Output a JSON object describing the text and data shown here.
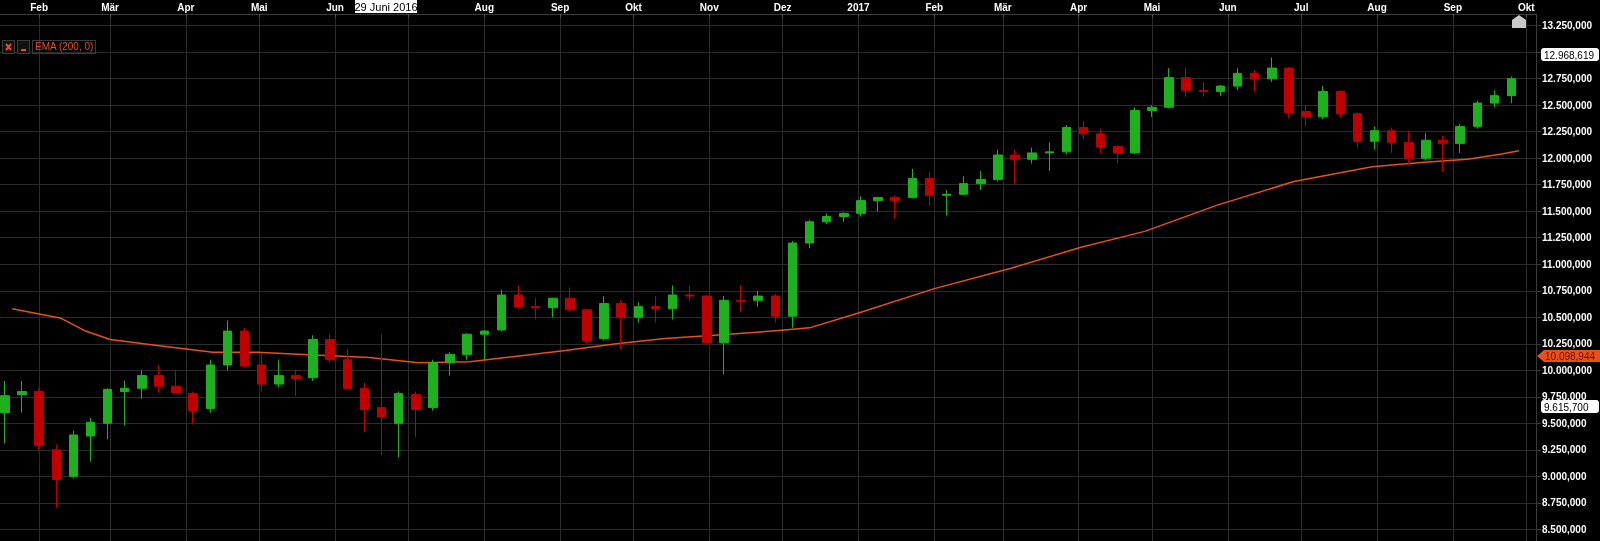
{
  "chart_data": {
    "type": "candlestick",
    "legend": "top left",
    "grid": true,
    "marker": "none",
    "xlim": [
      "2016-01-16",
      "2017-10-05"
    ],
    "xticks": [
      {
        "value": "2016-02-01",
        "label": "Feb"
      },
      {
        "value": "2016-03-01",
        "label": "Mär"
      },
      {
        "value": "2016-04-01",
        "label": "Apr"
      },
      {
        "value": "2016-05-01",
        "label": "Mai"
      },
      {
        "value": "2016-06-01",
        "label": "Jun"
      },
      {
        "value": "2016-07-01",
        "label": null
      },
      {
        "value": "2016-08-01",
        "label": "Aug"
      },
      {
        "value": "2016-09-01",
        "label": "Sep"
      },
      {
        "value": "2016-10-01",
        "label": "Okt"
      },
      {
        "value": "2016-11-01",
        "label": "Nov"
      },
      {
        "value": "2016-12-01",
        "label": "Dez"
      },
      {
        "value": "2017-01-01",
        "label": "2017"
      },
      {
        "value": "2017-02-01",
        "label": "Feb"
      },
      {
        "value": "2017-03-01",
        "label": "Mär"
      },
      {
        "value": "2017-04-01",
        "label": "Apr"
      },
      {
        "value": "2017-05-01",
        "label": "Mai"
      },
      {
        "value": "2017-06-01",
        "label": "Jun"
      },
      {
        "value": "2017-07-01",
        "label": "Jul"
      },
      {
        "value": "2017-08-01",
        "label": "Aug"
      },
      {
        "value": "2017-09-01",
        "label": "Sep"
      },
      {
        "value": "2017-10-01",
        "label": "Okt"
      }
    ],
    "ylim": [
      8390,
      13360
    ],
    "yticks": [
      {
        "value": 8500,
        "label": "8.500,000"
      },
      {
        "value": 8750,
        "label": "8.750,000"
      },
      {
        "value": 9000,
        "label": "9.000,000"
      },
      {
        "value": 9250,
        "label": "9.250,000"
      },
      {
        "value": 9500,
        "label": "9.500,000"
      },
      {
        "value": 9750,
        "label": "9.750,000"
      },
      {
        "value": 10000,
        "label": "10.000,000"
      },
      {
        "value": 10250,
        "label": "10.250,000"
      },
      {
        "value": 10500,
        "label": "10.500,000"
      },
      {
        "value": 10750,
        "label": "10.750,000"
      },
      {
        "value": 11000,
        "label": "11.000,000"
      },
      {
        "value": 11250,
        "label": "11.250,000"
      },
      {
        "value": 11500,
        "label": "11.500,000"
      },
      {
        "value": 11750,
        "label": "11.750,000"
      },
      {
        "value": 12000,
        "label": "12.000,000"
      },
      {
        "value": 12250,
        "label": "12.250,000"
      },
      {
        "value": 12500,
        "label": "12.500,000"
      },
      {
        "value": 12750,
        "label": "12.750,000"
      },
      {
        "value": 13000,
        "label": null
      },
      {
        "value": 13250,
        "label": "13.250,000"
      }
    ],
    "annotations": [
      "29 Juni 2016",
      "12.968,619",
      "10.098,944",
      "9.615,700"
    ],
    "series": [
      {
        "color": "#1fb01f",
        "x": [
          "2016-01-18",
          "2016-01-25",
          "2016-02-15",
          "2016-02-22",
          "2016-02-29",
          "2016-03-07",
          "2016-03-14",
          "2016-04-11",
          "2016-04-18",
          "2016-05-09",
          "2016-05-23",
          "2016-06-27",
          "2016-07-11",
          "2016-07-18",
          "2016-07-25",
          "2016-08-01",
          "2016-08-08",
          "2016-08-29",
          "2016-09-19",
          "2016-10-03",
          "2016-10-17",
          "2016-11-07",
          "2016-11-21",
          "2016-12-05",
          "2016-12-12",
          "2016-12-19",
          "2016-12-26",
          "2017-01-02",
          "2017-01-09",
          "2017-01-23",
          "2017-02-06",
          "2017-02-13",
          "2017-02-20",
          "2017-02-27",
          "2017-03-13",
          "2017-03-20",
          "2017-03-27",
          "2017-04-24",
          "2017-05-01",
          "2017-05-08",
          "2017-05-29",
          "2017-06-05",
          "2017-06-19",
          "2017-07-10",
          "2017-07-31",
          "2017-08-21",
          "2017-09-04",
          "2017-09-11",
          "2017-09-18",
          "2017-09-25"
        ],
        "ohlc": [
          [
            9600,
            9900,
            9310,
            9760
          ],
          [
            9770,
            9900,
            9600,
            9800
          ],
          [
            9000,
            9430,
            8980,
            9390
          ],
          [
            9380,
            9550,
            9140,
            9510
          ],
          [
            9500,
            9830,
            9350,
            9820
          ],
          [
            9800,
            9900,
            9480,
            9830
          ],
          [
            9830,
            10000,
            9730,
            9950
          ],
          [
            9640,
            10100,
            9600,
            10050
          ],
          [
            10050,
            10470,
            10000,
            10370
          ],
          [
            9870,
            10100,
            9840,
            9950
          ],
          [
            9930,
            10330,
            9900,
            10290
          ],
          [
            9500,
            9800,
            9180,
            9780
          ],
          [
            9650,
            10100,
            9620,
            10070
          ],
          [
            10070,
            10170,
            9950,
            10150
          ],
          [
            10150,
            10350,
            10100,
            10340
          ],
          [
            10340,
            10380,
            10100,
            10370
          ],
          [
            10380,
            10760,
            10370,
            10710
          ],
          [
            10590,
            10680,
            10500,
            10680
          ],
          [
            10300,
            10700,
            10280,
            10630
          ],
          [
            10500,
            10640,
            10450,
            10600
          ],
          [
            10580,
            10800,
            10480,
            10710
          ],
          [
            10260,
            10700,
            9960,
            10660
          ],
          [
            10660,
            10750,
            10600,
            10700
          ],
          [
            10510,
            11220,
            10400,
            11200
          ],
          [
            11200,
            11420,
            11150,
            11400
          ],
          [
            11400,
            11480,
            11380,
            11450
          ],
          [
            11450,
            11490,
            11400,
            11480
          ],
          [
            11480,
            11640,
            11450,
            11600
          ],
          [
            11600,
            11630,
            11500,
            11630
          ],
          [
            11630,
            11900,
            11620,
            11810
          ],
          [
            11650,
            11700,
            11460,
            11660
          ],
          [
            11660,
            11830,
            11650,
            11760
          ],
          [
            11760,
            11880,
            11700,
            11800
          ],
          [
            11800,
            12080,
            11780,
            12030
          ],
          [
            11990,
            12100,
            11950,
            12050
          ],
          [
            12050,
            12150,
            11880,
            12060
          ],
          [
            12060,
            12310,
            12040,
            12290
          ],
          [
            12050,
            12480,
            12040,
            12450
          ],
          [
            12450,
            12500,
            12390,
            12480
          ],
          [
            12480,
            12850,
            12470,
            12760
          ],
          [
            12630,
            12690,
            12590,
            12680
          ],
          [
            12680,
            12850,
            12640,
            12800
          ],
          [
            12750,
            12950,
            12720,
            12850
          ],
          [
            12390,
            12680,
            12370,
            12630
          ],
          [
            12160,
            12300,
            12080,
            12260
          ],
          [
            12000,
            12240,
            11980,
            12170
          ],
          [
            12140,
            12320,
            12050,
            12300
          ],
          [
            12300,
            12540,
            12280,
            12520
          ],
          [
            12520,
            12640,
            12480,
            12590
          ],
          [
            12590,
            12770,
            12520,
            12750
          ]
        ]
      },
      {
        "color": "#c00000",
        "x": [
          "2016-02-01",
          "2016-02-08",
          "2016-03-21",
          "2016-03-28",
          "2016-04-04",
          "2016-04-25",
          "2016-05-02",
          "2016-05-16",
          "2016-05-30",
          "2016-06-06",
          "2016-06-13",
          "2016-06-20",
          "2016-07-04",
          "2016-08-15",
          "2016-08-22",
          "2016-09-05",
          "2016-09-12",
          "2016-09-26",
          "2016-10-10",
          "2016-10-24",
          "2016-10-31",
          "2016-11-14",
          "2016-11-28",
          "2017-01-16",
          "2017-01-30",
          "2017-03-06",
          "2017-04-03",
          "2017-04-10",
          "2017-04-17",
          "2017-05-15",
          "2017-05-22",
          "2017-06-12",
          "2017-06-26",
          "2017-07-03",
          "2017-07-17",
          "2017-07-24",
          "2017-08-07",
          "2017-08-14",
          "2017-08-28"
        ],
        "ohlc": [
          [
            9800,
            9830,
            9250,
            9290
          ],
          [
            9250,
            9300,
            8700,
            8970
          ],
          [
            9950,
            10050,
            9790,
            9850
          ],
          [
            9850,
            10000,
            9790,
            9790
          ],
          [
            9780,
            9800,
            9500,
            9620
          ],
          [
            10370,
            10400,
            10030,
            10040
          ],
          [
            10050,
            10160,
            9800,
            9870
          ],
          [
            9950,
            10000,
            9760,
            9920
          ],
          [
            10290,
            10340,
            10070,
            10100
          ],
          [
            10100,
            10200,
            9820,
            9830
          ],
          [
            9830,
            9880,
            9420,
            9630
          ],
          [
            9650,
            10340,
            9200,
            9560
          ],
          [
            9770,
            9800,
            9370,
            9630
          ],
          [
            10710,
            10800,
            10580,
            10600
          ],
          [
            10600,
            10680,
            10480,
            10590
          ],
          [
            10680,
            10780,
            10550,
            10570
          ],
          [
            10570,
            10580,
            10250,
            10280
          ],
          [
            10630,
            10660,
            10200,
            10500
          ],
          [
            10600,
            10700,
            10450,
            10580
          ],
          [
            10710,
            10800,
            10650,
            10700
          ],
          [
            10700,
            10710,
            10250,
            10260
          ],
          [
            10660,
            10800,
            10550,
            10650
          ],
          [
            10700,
            10720,
            10450,
            10510
          ],
          [
            11630,
            11650,
            11430,
            11600
          ],
          [
            11810,
            11870,
            11550,
            11650
          ],
          [
            12030,
            12080,
            11760,
            11990
          ],
          [
            12290,
            12350,
            12180,
            12230
          ],
          [
            12230,
            12280,
            12050,
            12110
          ],
          [
            12110,
            12120,
            11950,
            12050
          ],
          [
            12760,
            12850,
            12580,
            12640
          ],
          [
            12640,
            12720,
            12580,
            12630
          ],
          [
            12800,
            12830,
            12630,
            12750
          ],
          [
            12850,
            12860,
            12380,
            12430
          ],
          [
            12440,
            12500,
            12300,
            12390
          ],
          [
            12630,
            12640,
            12380,
            12420
          ],
          [
            12420,
            12430,
            12100,
            12160
          ],
          [
            12260,
            12290,
            12050,
            12150
          ],
          [
            12150,
            12260,
            11930,
            12000
          ],
          [
            12170,
            12210,
            11870,
            12140
          ]
        ]
      },
      {
        "type": "line",
        "name": "EMA (200, 0)",
        "color": "#e8501a",
        "x": [
          "2016-01-21",
          "2016-02-10",
          "2016-02-20",
          "2016-03-01",
          "2016-03-22",
          "2016-04-12",
          "2016-04-30",
          "2016-05-19",
          "2016-06-15",
          "2016-07-05",
          "2016-07-26",
          "2016-08-17",
          "2016-09-04",
          "2016-09-24",
          "2016-10-14",
          "2016-11-03",
          "2016-11-27",
          "2016-12-12",
          "2017-01-01",
          "2017-02-01",
          "2017-03-04",
          "2017-04-02",
          "2017-04-28",
          "2017-05-28",
          "2017-06-28",
          "2017-07-30",
          "2017-08-19",
          "2017-09-07",
          "2017-09-21",
          "2017-09-28"
        ],
        "values": [
          10580,
          10490,
          10370,
          10290,
          10230,
          10170,
          10170,
          10150,
          10120,
          10070,
          10080,
          10140,
          10190,
          10250,
          10300,
          10330,
          10370,
          10400,
          10540,
          10770,
          10960,
          11160,
          11310,
          11560,
          11780,
          11920,
          11960,
          11990,
          12040,
          12070
        ]
      }
    ]
  }
}
